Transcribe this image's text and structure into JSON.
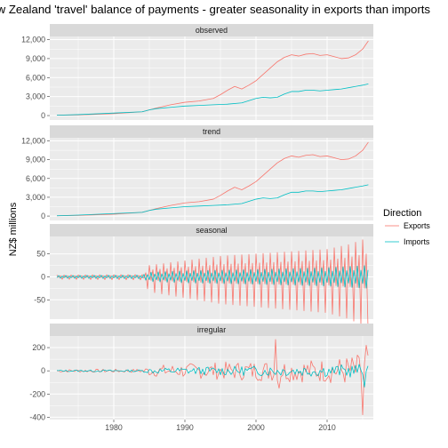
{
  "chart_data": {
    "type": "line",
    "title": "New Zealand 'travel' balance of payments - greater seasonality in exports than imports",
    "ylabel": "NZ$ millions",
    "xlabel": "",
    "x_range": [
      1971,
      2016.5
    ],
    "x_ticks": [
      1980,
      1990,
      2000,
      2010
    ],
    "legend": {
      "title": "Direction",
      "position": "right",
      "entries": [
        "Exports",
        "Imports"
      ]
    },
    "colors": {
      "Exports": "#F8766D",
      "Imports": "#00BFC4",
      "panel_bg": "#EBEBEB",
      "strip_bg": "#D9D9D9",
      "grid": "#FFFFFF"
    },
    "grid": true,
    "panels": [
      {
        "name": "observed",
        "ylim": [
          -700,
          12500
        ],
        "y_ticks": [
          0,
          3000,
          6000,
          9000,
          12000
        ],
        "y_tick_labels": [
          "0",
          "3,000",
          "6,000",
          "9,000",
          "12,000"
        ],
        "series": [
          {
            "name": "Exports",
            "points": [
              [
                1972,
                50
              ],
              [
                1975,
                100
              ],
              [
                1980,
                300
              ],
              [
                1984,
                600
              ],
              [
                1986,
                1200
              ],
              [
                1988,
                1700
              ],
              [
                1990,
                2100
              ],
              [
                1992,
                2300
              ],
              [
                1994,
                2700
              ],
              [
                1995,
                3300
              ],
              [
                1996,
                4000
              ],
              [
                1997,
                4600
              ],
              [
                1998,
                4200
              ],
              [
                1999,
                4800
              ],
              [
                2000,
                5500
              ],
              [
                2001,
                6500
              ],
              [
                2002,
                7500
              ],
              [
                2003,
                8500
              ],
              [
                2004,
                9200
              ],
              [
                2005,
                9600
              ],
              [
                2006,
                9400
              ],
              [
                2007,
                9700
              ],
              [
                2008,
                9800
              ],
              [
                2009,
                9500
              ],
              [
                2010,
                9600
              ],
              [
                2011,
                9300
              ],
              [
                2012,
                9000
              ],
              [
                2013,
                9100
              ],
              [
                2014,
                9600
              ],
              [
                2015,
                10500
              ],
              [
                2015.8,
                11800
              ]
            ]
          },
          {
            "name": "Imports",
            "points": [
              [
                1972,
                50
              ],
              [
                1975,
                150
              ],
              [
                1980,
                400
              ],
              [
                1984,
                600
              ],
              [
                1985,
                900
              ],
              [
                1986,
                1100
              ],
              [
                1988,
                1300
              ],
              [
                1990,
                1500
              ],
              [
                1992,
                1600
              ],
              [
                1994,
                1700
              ],
              [
                1996,
                1800
              ],
              [
                1998,
                2000
              ],
              [
                2000,
                2700
              ],
              [
                2001,
                2900
              ],
              [
                2002,
                2800
              ],
              [
                2003,
                2900
              ],
              [
                2004,
                3400
              ],
              [
                2005,
                3800
              ],
              [
                2006,
                3800
              ],
              [
                2007,
                4000
              ],
              [
                2008,
                4000
              ],
              [
                2009,
                3900
              ],
              [
                2010,
                4000
              ],
              [
                2011,
                4100
              ],
              [
                2012,
                4200
              ],
              [
                2013,
                4400
              ],
              [
                2014,
                4600
              ],
              [
                2015,
                4800
              ],
              [
                2015.8,
                5000
              ]
            ]
          }
        ]
      },
      {
        "name": "trend",
        "ylim": [
          -700,
          12500
        ],
        "y_ticks": [
          0,
          3000,
          6000,
          9000,
          12000
        ],
        "y_tick_labels": [
          "0",
          "3,000",
          "6,000",
          "9,000",
          "12,000"
        ],
        "series": [
          {
            "name": "Exports",
            "points": [
              [
                1972,
                50
              ],
              [
                1975,
                100
              ],
              [
                1980,
                300
              ],
              [
                1984,
                600
              ],
              [
                1986,
                1200
              ],
              [
                1988,
                1700
              ],
              [
                1990,
                2100
              ],
              [
                1992,
                2300
              ],
              [
                1994,
                2700
              ],
              [
                1995,
                3300
              ],
              [
                1996,
                4000
              ],
              [
                1997,
                4600
              ],
              [
                1998,
                4200
              ],
              [
                1999,
                4800
              ],
              [
                2000,
                5500
              ],
              [
                2001,
                6500
              ],
              [
                2002,
                7500
              ],
              [
                2003,
                8500
              ],
              [
                2004,
                9200
              ],
              [
                2005,
                9600
              ],
              [
                2006,
                9400
              ],
              [
                2007,
                9700
              ],
              [
                2008,
                9800
              ],
              [
                2009,
                9500
              ],
              [
                2010,
                9600
              ],
              [
                2011,
                9300
              ],
              [
                2012,
                9000
              ],
              [
                2013,
                9100
              ],
              [
                2014,
                9600
              ],
              [
                2015,
                10500
              ],
              [
                2015.8,
                11800
              ]
            ]
          },
          {
            "name": "Imports",
            "points": [
              [
                1972,
                50
              ],
              [
                1975,
                150
              ],
              [
                1980,
                400
              ],
              [
                1984,
                600
              ],
              [
                1985,
                900
              ],
              [
                1986,
                1100
              ],
              [
                1988,
                1300
              ],
              [
                1990,
                1500
              ],
              [
                1992,
                1600
              ],
              [
                1994,
                1700
              ],
              [
                1996,
                1800
              ],
              [
                1998,
                2000
              ],
              [
                2000,
                2700
              ],
              [
                2001,
                2900
              ],
              [
                2002,
                2800
              ],
              [
                2003,
                2900
              ],
              [
                2004,
                3400
              ],
              [
                2005,
                3800
              ],
              [
                2006,
                3800
              ],
              [
                2007,
                4000
              ],
              [
                2008,
                4000
              ],
              [
                2009,
                3900
              ],
              [
                2010,
                4000
              ],
              [
                2011,
                4100
              ],
              [
                2012,
                4200
              ],
              [
                2013,
                4400
              ],
              [
                2014,
                4600
              ],
              [
                2015,
                4800
              ],
              [
                2015.8,
                5000
              ]
            ]
          }
        ]
      },
      {
        "name": "seasonal",
        "ylim": [
          -92,
          88
        ],
        "y_ticks": [
          -50,
          0,
          50
        ],
        "y_tick_labels": [
          "-50",
          "0",
          "50"
        ],
        "series": [
          {
            "name": "Exports",
            "seasonal": {
              "start": 1972,
              "step": 0.25,
              "pattern": [
                1,
                -0.3,
                0.6,
                -1.3
              ],
              "amplitude": [
                [
                  1972,
                  4
                ],
                [
                  1984,
                  5
                ],
                [
                  1985,
                  25
                ],
                [
                  1990,
                  35
                ],
                [
                  1995,
                  45
                ],
                [
                  2000,
                  50
                ],
                [
                  2005,
                  55
                ],
                [
                  2010,
                  60
                ],
                [
                  2013,
                  70
                ],
                [
                  2015.8,
                  85
                ]
              ]
            }
          },
          {
            "name": "Imports",
            "seasonal": {
              "start": 1972,
              "step": 0.25,
              "pattern": [
                -0.6,
                1,
                -1,
                0.6
              ],
              "amplitude": [
                [
                  1972,
                  3
                ],
                [
                  1984,
                  4
                ],
                [
                  1985,
                  10
                ],
                [
                  1990,
                  13
                ],
                [
                  2000,
                  16
                ],
                [
                  2010,
                  20
                ],
                [
                  2015.8,
                  25
                ]
              ]
            }
          }
        ]
      },
      {
        "name": "irregular",
        "ylim": [
          -420,
          300
        ],
        "y_ticks": [
          -400,
          -200,
          0,
          200
        ],
        "y_tick_labels": [
          "-400",
          "-200",
          "0",
          "200"
        ],
        "series": [
          {
            "name": "Exports",
            "irregular": {
              "start": 1972,
              "step": 0.25,
              "seed": 7,
              "amplitude": [
                [
                  1972,
                  15
                ],
                [
                  1984,
                  20
                ],
                [
                  1985,
                  60
                ],
                [
                  1990,
                  80
                ],
                [
                  2000,
                  110
                ],
                [
                  2010,
                  130
                ],
                [
                  2015.8,
                  200
                ]
              ],
              "spikes": [
                [
                  2002.8,
                  270
                ],
                [
                  2003.3,
                  -150
                ],
                [
                  2014.9,
                  -380
                ],
                [
                  2015.6,
                  220
                ]
              ]
            }
          },
          {
            "name": "Imports",
            "irregular": {
              "start": 1972,
              "step": 0.25,
              "seed": 13,
              "amplitude": [
                [
                  1972,
                  8
                ],
                [
                  1984,
                  12
                ],
                [
                  1985,
                  30
                ],
                [
                  1990,
                  40
                ],
                [
                  2000,
                  55
                ],
                [
                  2010,
                  65
                ],
                [
                  2015.8,
                  80
                ]
              ],
              "spikes": [
                [
                  2015.2,
                  -140
                ]
              ]
            }
          }
        ]
      }
    ]
  }
}
